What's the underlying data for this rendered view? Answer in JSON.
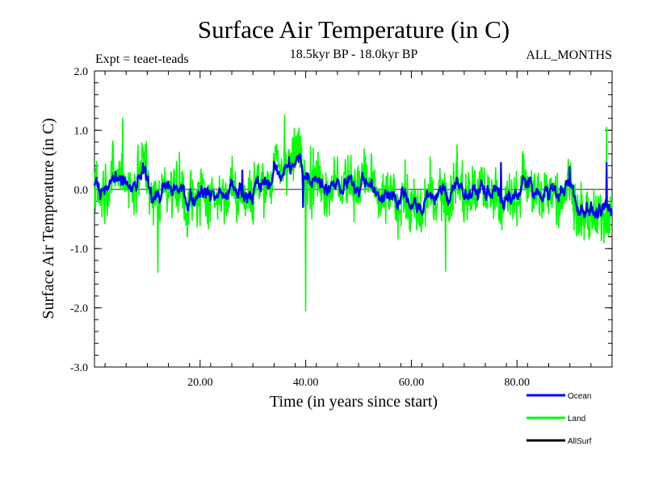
{
  "chart_data": {
    "type": "line",
    "title": "Surface Air Temperature (in C)",
    "subtitle_left": "Expt = teaet-teads",
    "subtitle_center": "18.5kyr BP - 18.0kyr BP",
    "subtitle_right": "ALL_MONTHS",
    "xlabel": "Time (in years since start)",
    "ylabel": "Surface Air Temperature (in C)",
    "xlim": [
      0,
      98
    ],
    "ylim": [
      -3.0,
      2.0
    ],
    "x_ticks": [
      20,
      40,
      60,
      80
    ],
    "x_tick_labels": [
      "20.00",
      "40.00",
      "60.00",
      "80.00"
    ],
    "y_ticks": [
      2.0,
      1.0,
      0.0,
      -1.0,
      -2.0,
      -3.0
    ],
    "y_tick_labels": [
      "2.0",
      "1.0",
      "0.0",
      "-1.0",
      "-2.0",
      "-3.0"
    ],
    "zero_line": 0.0,
    "sample_step_years": 0.0833,
    "series": [
      {
        "name": "Land",
        "color": "#00ff00",
        "summary": "monthly anomalies fluctuating mostly between -1.0 and 0.8 C",
        "extremes": [
          {
            "x": 5.3,
            "y": 1.2
          },
          {
            "x": 12.0,
            "y": -1.4
          },
          {
            "x": 36.0,
            "y": 1.25
          },
          {
            "x": 40.0,
            "y": -2.05
          },
          {
            "x": 66.5,
            "y": -1.38
          },
          {
            "x": 97.0,
            "y": 1.05
          }
        ]
      },
      {
        "name": "Ocean",
        "color": "#0000ff",
        "summary": "smoother anomalies mostly between -0.35 and 0.35 C",
        "extremes": [
          {
            "x": 4.0,
            "y": 0.3
          },
          {
            "x": 28.0,
            "y": 0.32
          },
          {
            "x": 39.5,
            "y": -0.3
          },
          {
            "x": 77.0,
            "y": 0.45
          },
          {
            "x": 90.0,
            "y": 0.38
          },
          {
            "x": 97.0,
            "y": 0.45
          }
        ]
      },
      {
        "name": "AllSurf",
        "color": "#000000",
        "summary": "close to Ocean series, mostly between -0.5 and 0.3 C",
        "extremes": [
          {
            "x": 91.5,
            "y": -0.55
          },
          {
            "x": 92.0,
            "y": -0.6
          }
        ]
      }
    ],
    "legend": [
      {
        "name": "Ocean",
        "color": "#0000ff"
      },
      {
        "name": "Land",
        "color": "#00ff00"
      },
      {
        "name": "AllSurf",
        "color": "#000000"
      }
    ],
    "legend_position": "bottom-right"
  }
}
